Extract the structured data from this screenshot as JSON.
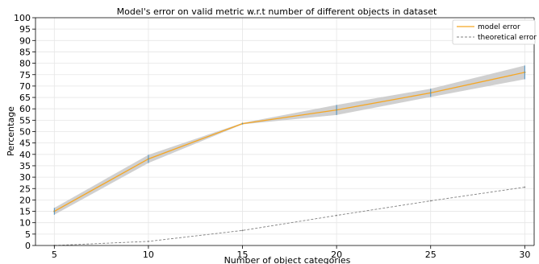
{
  "chart_data": {
    "type": "line",
    "title": "Model's error on valid metric w.r.t number of different objects in dataset",
    "xlabel": "Number of object categories",
    "ylabel": "Percentage",
    "x": [
      5,
      10,
      15,
      20,
      25,
      30
    ],
    "xlim": [
      4,
      30.5
    ],
    "ylim": [
      0,
      100
    ],
    "yticks": [
      0,
      5,
      10,
      15,
      20,
      25,
      30,
      35,
      40,
      45,
      50,
      55,
      60,
      65,
      70,
      75,
      80,
      85,
      90,
      95,
      100
    ],
    "xticks": [
      5,
      10,
      15,
      20,
      25,
      30
    ],
    "grid": true,
    "legend_position": "top-right",
    "series": [
      {
        "name": "model error",
        "color": "#f5a623",
        "values": [
          15,
          38,
          53.5,
          59.5,
          67,
          76
        ],
        "error": [
          1.5,
          1.8,
          0.3,
          2.2,
          1.8,
          3
        ],
        "band_color": "#c8c8c8",
        "errorbar_color": "#4a90c2"
      },
      {
        "name": "theoretical error",
        "color": "#808080",
        "style": "dashed",
        "values": [
          0,
          1.8,
          6.6,
          13.2,
          19.6,
          25.6
        ]
      }
    ]
  }
}
